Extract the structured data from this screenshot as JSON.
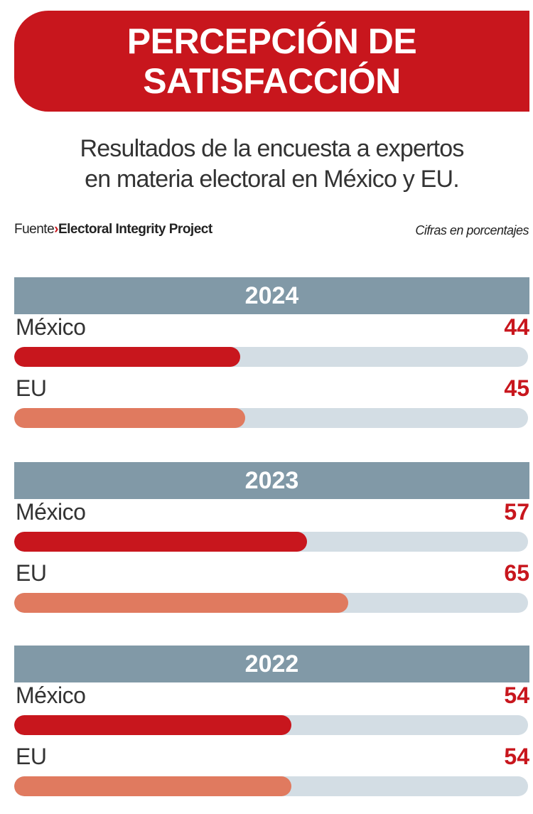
{
  "title": {
    "line1": "PERCEPCIÓN DE",
    "line2": "SATISFACCIÓN"
  },
  "subtitle": {
    "line1": "Resultados de la encuesta a expertos",
    "line2": "en materia electoral en México y EU."
  },
  "source": {
    "prefix": "Fuente",
    "name": "Electoral Integrity Project"
  },
  "units_note": "Cifras en porcentajes",
  "colors": {
    "brand_red": "#c8161d",
    "mexico": "#c8161d",
    "eu": "#e07a5f",
    "track": "#d3dde4",
    "year_band": "#8199a7"
  },
  "chart_data": {
    "type": "bar",
    "orientation": "horizontal",
    "xlim": [
      0,
      100
    ],
    "groups": [
      {
        "year": "2024",
        "series": [
          {
            "name": "México",
            "value": 44
          },
          {
            "name": "EU",
            "value": 45
          }
        ]
      },
      {
        "year": "2023",
        "series": [
          {
            "name": "México",
            "value": 57
          },
          {
            "name": "EU",
            "value": 65
          }
        ]
      },
      {
        "year": "2022",
        "series": [
          {
            "name": "México",
            "value": 54
          },
          {
            "name": "EU",
            "value": 54
          }
        ]
      }
    ]
  }
}
